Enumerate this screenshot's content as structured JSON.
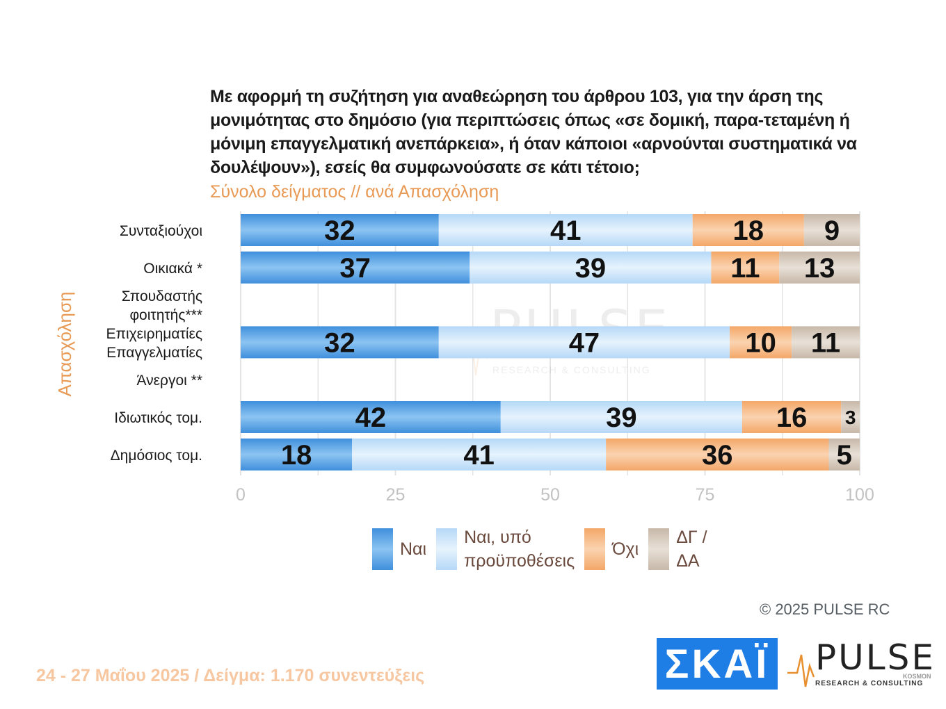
{
  "question": "Με αφορμή τη συζήτηση για αναθεώρηση του άρθρου 103, για την άρση της μονιμότητας στο δημόσιο (για περιπτώσεις όπως «σε δομική, παρα-τεταμένη ή μόνιμη επαγγελματική ανεπάρκεια», ή όταν κάποιοι «αρνούνται συστηματικά να δουλέψουν»), εσείς θα συμφωνούσατε σε κάτι τέτοιο;",
  "subtitle": "Σύνολο δείγματος // ανά Απασχόληση",
  "chart_data": {
    "type": "bar",
    "orientation": "horizontal",
    "stacked": true,
    "ylabel": "Απασχόληση",
    "xlim": [
      0,
      100
    ],
    "x_ticks": [
      "0",
      "25",
      "50",
      "75",
      "100"
    ],
    "grid": true,
    "legend_position": "bottom",
    "categories": [
      [
        "Συνταξιούχοι"
      ],
      [
        "Οικιακά *"
      ],
      [
        "Σπουδαστής",
        "φοιτητής***"
      ],
      [
        "Επιχειρηματίες",
        "Επαγγελματίες"
      ],
      [
        "Άνεργοι **"
      ],
      [
        "Ιδιωτικός τομ."
      ],
      [
        "Δημόσιος τομ."
      ]
    ],
    "series": [
      {
        "name": "Ναι",
        "color": "#5aa6e6",
        "values": [
          32,
          37,
          null,
          32,
          null,
          42,
          18
        ]
      },
      {
        "name": "Ναι, υπό προϋποθέσεις",
        "color": "#c3e0fa",
        "values": [
          41,
          39,
          null,
          47,
          null,
          39,
          41
        ]
      },
      {
        "name": "Όχι",
        "color": "#f5b47d",
        "values": [
          18,
          11,
          null,
          10,
          null,
          16,
          36
        ]
      },
      {
        "name": "ΔΓ / ΔΑ",
        "color": "#d2c5b8",
        "values": [
          9,
          13,
          null,
          11,
          null,
          3,
          5
        ]
      }
    ]
  },
  "legend": [
    {
      "lines": [
        "Ναι"
      ],
      "color": "#5aa6e6"
    },
    {
      "lines": [
        "Ναι, υπό",
        "προϋποθέσεις"
      ],
      "color": "#c3e0fa"
    },
    {
      "lines": [
        "Όχι"
      ],
      "color": "#f5b47d"
    },
    {
      "lines": [
        "ΔΓ /",
        "ΔΑ"
      ],
      "color": "#d2c5b8"
    }
  ],
  "copyright": "©  2025  PULSE RC",
  "footnote": "24 - 27 Μαΐου 2025  /  Δείγμα:  1.170 συνεντεύξεις",
  "logos": {
    "skai": "ΣΚΑΪ",
    "pulse": "PULSE",
    "pulse_kosmon": "KOSMON",
    "pulse_tagline": "RESEARCH & CONSULTING"
  },
  "watermark": {
    "word": "PULSE",
    "tagline": "RESEARCH & CONSULTING"
  }
}
